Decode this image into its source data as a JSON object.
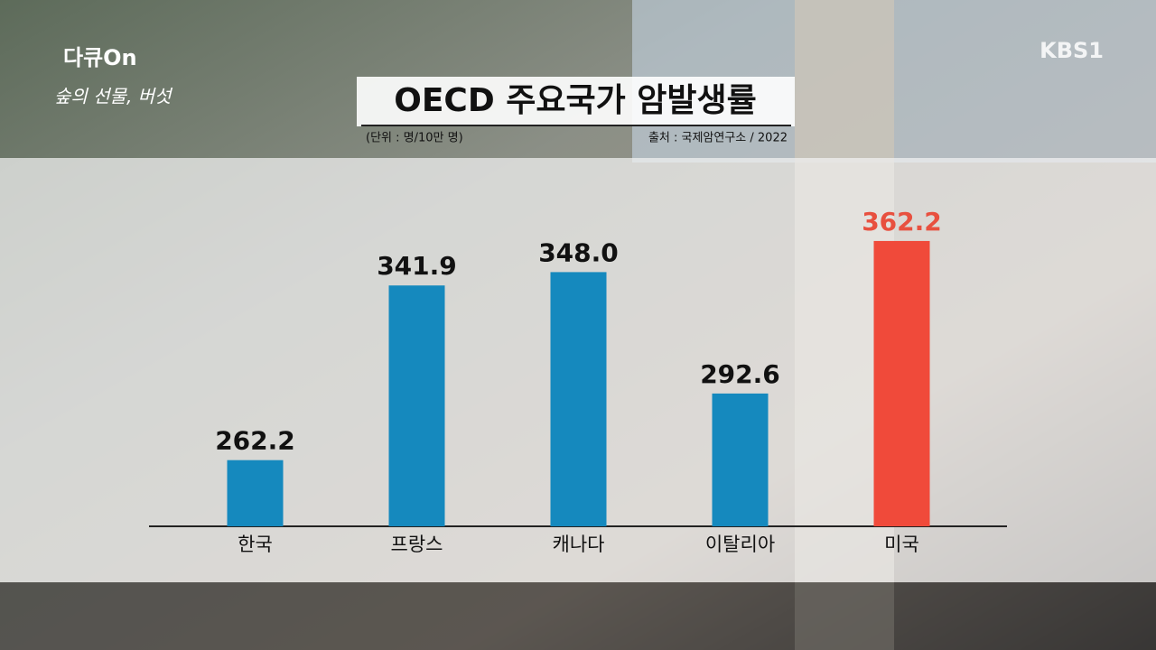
{
  "logos": {
    "program": "다큐On",
    "episode": "숲의 선물, 버섯",
    "channel": "KBS1"
  },
  "chart_data": {
    "type": "bar",
    "title": "OECD 주요국가 암발생률",
    "subtitle": "(단위 : 명/10만 명)",
    "source": "출처 : 국제암연구소 / 2022",
    "categories": [
      "한국",
      "프랑스",
      "캐나다",
      "이탈리아",
      "미국"
    ],
    "values": [
      262.2,
      341.9,
      348.0,
      292.6,
      362.2
    ],
    "value_labels": [
      "262.2",
      "341.9",
      "348.0",
      "292.6",
      "362.2"
    ],
    "colors": [
      "#1589be",
      "#1589be",
      "#1589be",
      "#1589be",
      "#f04a3a"
    ],
    "label_colors": [
      "#111111",
      "#111111",
      "#111111",
      "#111111",
      "#e8503f"
    ],
    "ylim": [
      232,
      370
    ]
  }
}
